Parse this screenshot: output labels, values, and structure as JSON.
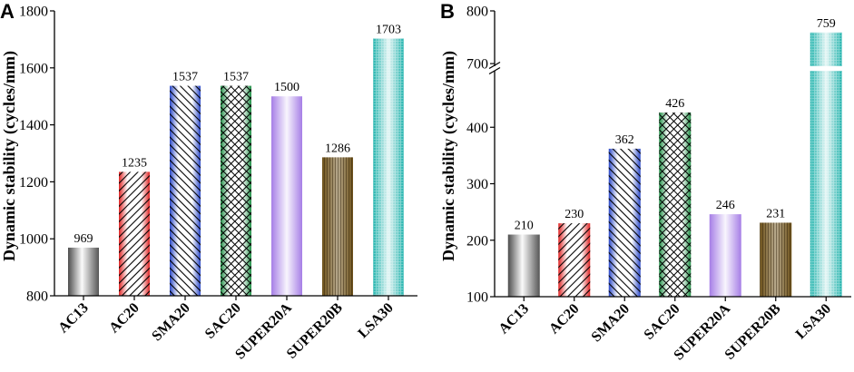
{
  "chart_data": [
    {
      "panel": "A",
      "type": "bar",
      "categories": [
        "AC13",
        "AC20",
        "SMA20",
        "SAC20",
        "SUPER20A",
        "SUPER20B",
        "LSA30"
      ],
      "values": [
        969,
        1235,
        1537,
        1537,
        1500,
        1286,
        1703
      ],
      "title": "",
      "xlabel": "",
      "ylabel": "Dynamic stability (cycles/mm)",
      "ylim": [
        800,
        1800
      ],
      "yticks": [
        800,
        1000,
        1200,
        1400,
        1600,
        1800
      ],
      "grid": false,
      "bar_colors": [
        "#4d4d4d",
        "#e02424",
        "#2a48c8",
        "#1f8f45",
        "#a67ee6",
        "#6e521a",
        "#22b3ad"
      ]
    },
    {
      "panel": "B",
      "type": "bar",
      "categories": [
        "AC13",
        "AC20",
        "SMA20",
        "SAC20",
        "SUPER20A",
        "SUPER20B",
        "LSA30"
      ],
      "values": [
        210,
        230,
        362,
        426,
        246,
        231,
        759
      ],
      "title": "",
      "xlabel": "",
      "ylabel": "Dynamic stability (cycles/mm)",
      "ylim": [
        100,
        800
      ],
      "axis_break": [
        500,
        695
      ],
      "yticks": [
        100,
        200,
        300,
        400,
        700,
        800
      ],
      "grid": false,
      "bar_colors": [
        "#4d4d4d",
        "#e02424",
        "#2a48c8",
        "#1f8f45",
        "#a67ee6",
        "#6e521a",
        "#22b3ad"
      ]
    }
  ]
}
